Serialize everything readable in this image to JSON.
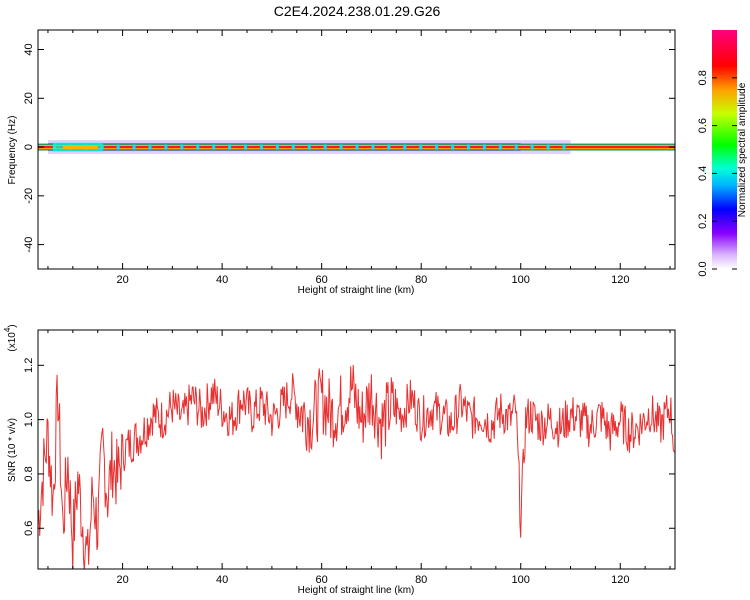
{
  "title": "C2E4.2024.238.01.29.G26",
  "chart_data": [
    {
      "type": "heatmap",
      "xlabel": "Height of straight line (km)",
      "ylabel": "Frequency (Hz)",
      "xlim": [
        3,
        131
      ],
      "ylim": [
        -50,
        48
      ],
      "x_ticks": [
        "20",
        "40",
        "60",
        "80",
        "100",
        "120"
      ],
      "y_ticks": [
        "40",
        "20",
        "0",
        "-20",
        "-40"
      ],
      "colorbar": {
        "label": "Normalized spectral amplitude",
        "range": [
          0,
          1
        ],
        "ticks": [
          "0.0",
          "0.2",
          "0.4",
          "0.6",
          "0.8"
        ]
      },
      "band": {
        "frequency_hz": 0,
        "x_range_km": [
          3,
          131
        ],
        "spread_extent_km": [
          5,
          110
        ]
      }
    },
    {
      "type": "line",
      "xlabel": "Height of straight line (km)",
      "ylabel": "SNR (10 * v/v)",
      "exponent_label": "(x10",
      "exponent_value": "4",
      "exponent_close": ")",
      "xlim": [
        3,
        131
      ],
      "ylim": [
        0.45,
        1.33
      ],
      "x_ticks": [
        "20",
        "40",
        "60",
        "80",
        "100",
        "120"
      ],
      "y_ticks": [
        "0.6",
        "0.8",
        "1.0",
        "1.2"
      ],
      "series": [
        {
          "color": "#e83030",
          "x": [
            3,
            4,
            5,
            6,
            7,
            8,
            9,
            10,
            11,
            12,
            13,
            14,
            15,
            16,
            17,
            18,
            19,
            20,
            22,
            24,
            26,
            28,
            30,
            32,
            34,
            36,
            38,
            40,
            42,
            44,
            46,
            48,
            50,
            52,
            54,
            56,
            58,
            60,
            62,
            64,
            66,
            68,
            70,
            72,
            74,
            76,
            78,
            80,
            82,
            84,
            86,
            88,
            90,
            92,
            94,
            96,
            98,
            99,
            100,
            101,
            102,
            104,
            106,
            108,
            110,
            112,
            114,
            116,
            118,
            120,
            122,
            124,
            126,
            128,
            130,
            131
          ],
          "y": [
            0.62,
            0.8,
            0.95,
            0.7,
            1.1,
            0.6,
            0.85,
            0.55,
            0.78,
            0.62,
            0.47,
            0.74,
            0.6,
            0.9,
            0.72,
            0.85,
            0.78,
            0.88,
            0.92,
            0.95,
            1.02,
            1.0,
            1.05,
            1.0,
            1.08,
            1.02,
            1.1,
            1.04,
            1.0,
            1.08,
            1.02,
            1.06,
            1.0,
            1.05,
            1.1,
            1.03,
            1.0,
            1.08,
            1.02,
            1.05,
            1.12,
            1.0,
            1.1,
            0.98,
            1.05,
            1.02,
            1.08,
            1.0,
            1.04,
            1.02,
            0.98,
            1.06,
            1.0,
            1.02,
            0.98,
            1.03,
            1.0,
            1.04,
            0.63,
            1.0,
            1.02,
            0.98,
            1.0,
            0.97,
            1.02,
            1.0,
            0.97,
            1.02,
            0.95,
            1.0,
            0.95,
            0.98,
            1.03,
            0.97,
            1.05,
            0.88
          ]
        }
      ]
    }
  ]
}
